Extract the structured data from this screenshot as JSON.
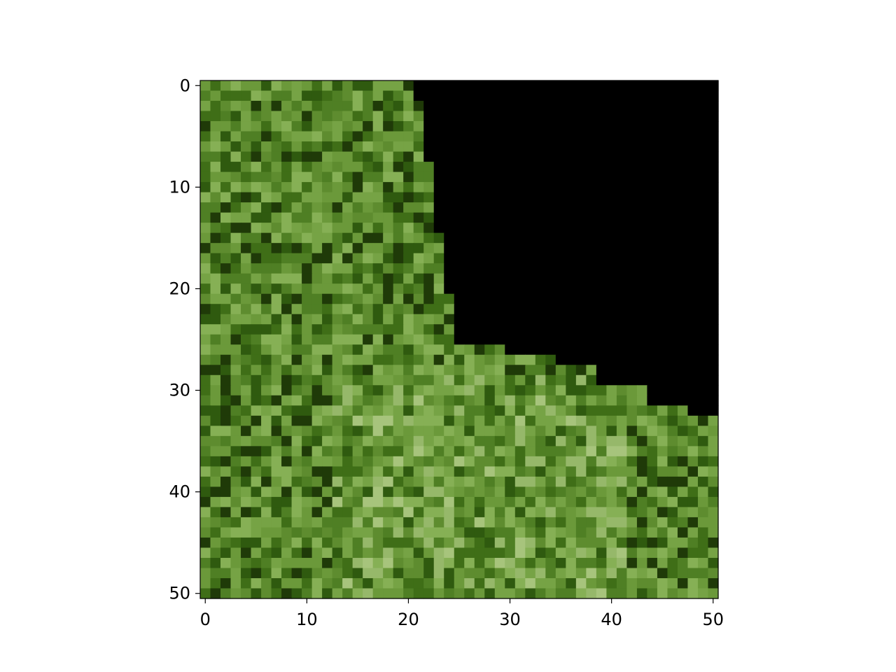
{
  "chart_data": {
    "type": "heatmap",
    "title": "",
    "xlabel": "",
    "ylabel": "",
    "xlim": [
      -0.5,
      50.5
    ],
    "ylim": [
      50.5,
      -0.5
    ],
    "grid": false,
    "image_size": [
      51,
      51
    ],
    "x_ticks": [
      0,
      10,
      20,
      30,
      40,
      50
    ],
    "y_ticks": [
      0,
      10,
      20,
      30,
      40,
      50
    ],
    "x_tick_labels": [
      "0",
      "10",
      "20",
      "30",
      "40",
      "50"
    ],
    "y_tick_labels": [
      "0",
      "10",
      "20",
      "30",
      "40",
      "50"
    ],
    "masked_region": {
      "description": "black (no-data) area in top-right",
      "boundary": [
        {
          "rows": [
            0,
            1
          ],
          "first_masked_col": 21
        },
        {
          "rows": [
            2,
            7
          ],
          "first_masked_col": 22
        },
        {
          "rows": [
            8,
            14
          ],
          "first_masked_col": 23
        },
        {
          "rows": [
            15,
            20
          ],
          "first_masked_col": 24
        },
        {
          "rows": [
            21,
            25
          ],
          "first_masked_col": 25
        },
        {
          "rows": [
            26,
            26
          ],
          "first_masked_col": 30
        },
        {
          "rows": [
            27,
            27
          ],
          "first_masked_col": 35
        },
        {
          "rows": [
            28,
            29
          ],
          "first_masked_col": 39
        },
        {
          "rows": [
            30,
            31
          ],
          "first_masked_col": 44
        },
        {
          "rows": [
            32,
            32
          ],
          "first_masked_col": 48
        }
      ]
    },
    "palette": [
      "#1f3a08",
      "#2f5a0f",
      "#3f6e17",
      "#4f7f24",
      "#5e8c2f",
      "#6b993a",
      "#76a345",
      "#86b055",
      "#96b86a",
      "#a7c47c"
    ],
    "mask_color": "#000000"
  }
}
